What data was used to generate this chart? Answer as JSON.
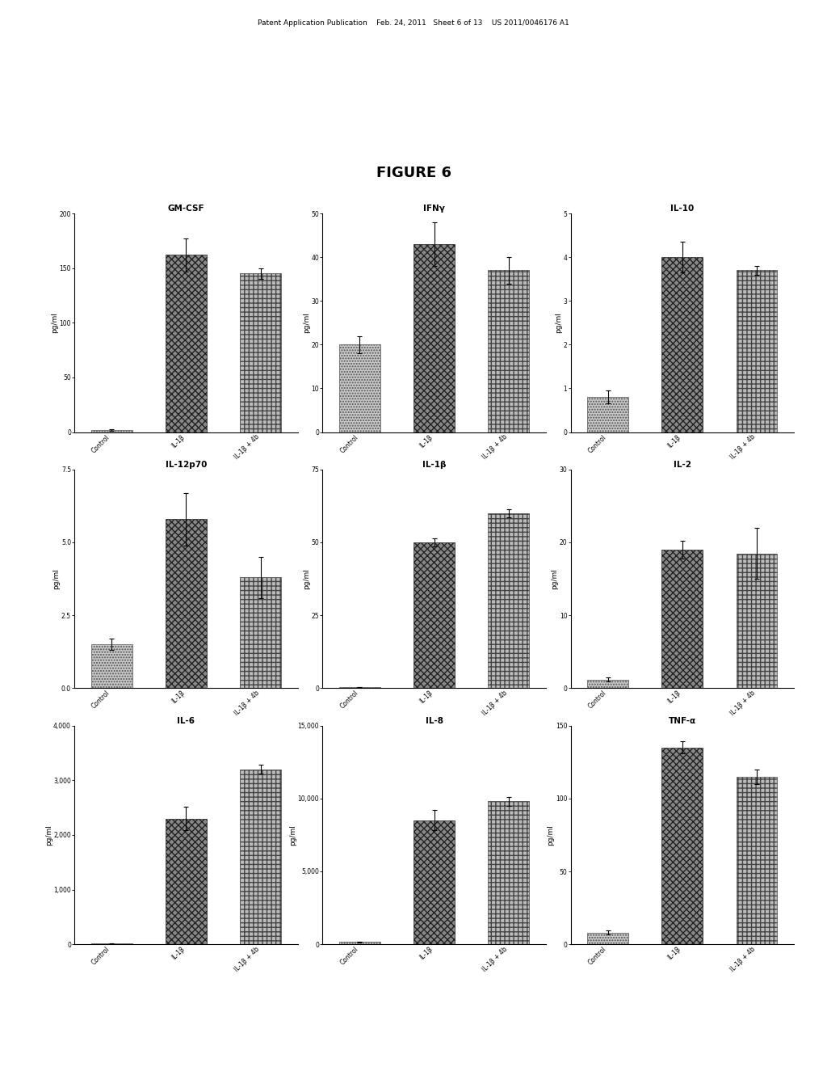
{
  "figure_title": "FIGURE 6",
  "header_text": "Patent Application Publication    Feb. 24, 2011   Sheet 6 of 13    US 2011/0046176 A1",
  "subplots": [
    {
      "title": "GM-CSF",
      "ylabel": "pg/ml",
      "ylim": [
        0,
        200
      ],
      "yticks": [
        0,
        50,
        100,
        150,
        200
      ],
      "categories": [
        "Control",
        "IL-1β",
        "IL-1β + 4b"
      ],
      "values": [
        2,
        162,
        145
      ],
      "errors": [
        0.8,
        15,
        5
      ]
    },
    {
      "title": "IFNγ",
      "ylabel": "pg/ml",
      "ylim": [
        0,
        50
      ],
      "yticks": [
        0,
        10,
        20,
        30,
        40,
        50
      ],
      "categories": [
        "Control",
        "IL-1β",
        "IL-1β + 4b"
      ],
      "values": [
        20,
        43,
        37
      ],
      "errors": [
        2,
        5,
        3
      ]
    },
    {
      "title": "IL-10",
      "ylabel": "pg/ml",
      "ylim": [
        0,
        5
      ],
      "yticks": [
        0,
        1,
        2,
        3,
        4,
        5
      ],
      "categories": [
        "Control",
        "IL-1β",
        "IL-1β + 4b"
      ],
      "values": [
        0.8,
        4.0,
        3.7
      ],
      "errors": [
        0.15,
        0.35,
        0.1
      ]
    },
    {
      "title": "IL-12p70",
      "ylabel": "pg/ml",
      "ylim": [
        0.0,
        7.5
      ],
      "yticks": [
        0.0,
        2.5,
        5.0,
        7.5
      ],
      "categories": [
        "Control",
        "IL-1β",
        "IL-1β + 4b"
      ],
      "values": [
        1.5,
        5.8,
        3.8
      ],
      "errors": [
        0.2,
        0.9,
        0.7
      ]
    },
    {
      "title": "IL-1β",
      "ylabel": "pg/ml",
      "ylim": [
        0,
        75
      ],
      "yticks": [
        0,
        25,
        50,
        75
      ],
      "categories": [
        "Control",
        "IL-1β",
        "IL-1β + 4b"
      ],
      "values": [
        0.3,
        50,
        60
      ],
      "errors": [
        0.05,
        1.5,
        1.5
      ]
    },
    {
      "title": "IL-2",
      "ylabel": "pg/ml",
      "ylim": [
        0,
        30
      ],
      "yticks": [
        0,
        10,
        20,
        30
      ],
      "categories": [
        "Control",
        "IL-1β",
        "IL-1β + 4b"
      ],
      "values": [
        1.2,
        19,
        18.5
      ],
      "errors": [
        0.3,
        1.2,
        3.5
      ]
    },
    {
      "title": "IL-6",
      "ylabel": "pg/ml",
      "ylim": [
        0,
        4000
      ],
      "yticks": [
        0,
        1000,
        2000,
        3000,
        4000
      ],
      "categories": [
        "Control",
        "IL-1β",
        "IL-1β + 4b"
      ],
      "values": [
        15,
        2300,
        3200
      ],
      "errors": [
        5,
        220,
        80
      ]
    },
    {
      "title": "IL-8",
      "ylabel": "pg/ml",
      "ylim": [
        0,
        15000
      ],
      "yticks": [
        0,
        5000,
        10000,
        15000
      ],
      "categories": [
        "Control",
        "IL-1β",
        "IL-1β + 4b"
      ],
      "values": [
        150,
        8500,
        9800
      ],
      "errors": [
        30,
        700,
        300
      ]
    },
    {
      "title": "TNF-α",
      "ylabel": "pg/ml",
      "ylim": [
        0,
        150
      ],
      "yticks": [
        0,
        50,
        100,
        150
      ],
      "categories": [
        "Control",
        "IL-1β",
        "IL-1β + 4b"
      ],
      "values": [
        8,
        135,
        115
      ],
      "errors": [
        1.5,
        4,
        5
      ]
    }
  ],
  "bar_styles": [
    {
      "facecolor": "#c8c8c8",
      "hatch": ".....",
      "edgecolor": "#555555",
      "linewidth": 0.5
    },
    {
      "facecolor": "#888888",
      "hatch": "xxxx",
      "edgecolor": "#222222",
      "linewidth": 0.5
    },
    {
      "facecolor": "#bbbbbb",
      "hatch": "+++",
      "edgecolor": "#444444",
      "linewidth": 0.5
    }
  ],
  "background_color": "#ffffff",
  "text_color": "#000000"
}
